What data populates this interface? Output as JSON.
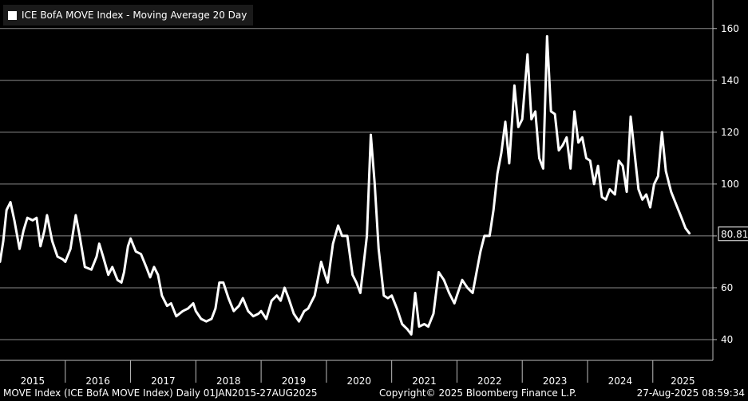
{
  "chart_data": {
    "type": "line",
    "title": "ICE BofA MOVE Index - Moving Average 20 Day",
    "series": [
      {
        "name": "ICE BofA MOVE Index - Moving Average 20 Day",
        "color": "#ffffff",
        "points": [
          [
            2015.0,
            70
          ],
          [
            2015.05,
            78
          ],
          [
            2015.1,
            90
          ],
          [
            2015.16,
            93
          ],
          [
            2015.22,
            86
          ],
          [
            2015.3,
            75
          ],
          [
            2015.36,
            82
          ],
          [
            2015.42,
            87
          ],
          [
            2015.5,
            86
          ],
          [
            2015.56,
            87
          ],
          [
            2015.62,
            76
          ],
          [
            2015.68,
            82
          ],
          [
            2015.72,
            88
          ],
          [
            2015.8,
            78
          ],
          [
            2015.88,
            72
          ],
          [
            2015.96,
            71
          ],
          [
            2016.0,
            70
          ],
          [
            2016.08,
            75
          ],
          [
            2016.16,
            88
          ],
          [
            2016.22,
            80
          ],
          [
            2016.3,
            68
          ],
          [
            2016.4,
            67
          ],
          [
            2016.48,
            72
          ],
          [
            2016.52,
            77
          ],
          [
            2016.58,
            72
          ],
          [
            2016.66,
            65
          ],
          [
            2016.72,
            68
          ],
          [
            2016.8,
            63
          ],
          [
            2016.86,
            62
          ],
          [
            2016.9,
            66
          ],
          [
            2016.96,
            76
          ],
          [
            2017.0,
            79
          ],
          [
            2017.08,
            74
          ],
          [
            2017.16,
            73
          ],
          [
            2017.24,
            68
          ],
          [
            2017.3,
            64
          ],
          [
            2017.36,
            68
          ],
          [
            2017.42,
            65
          ],
          [
            2017.48,
            57
          ],
          [
            2017.56,
            53
          ],
          [
            2017.62,
            54
          ],
          [
            2017.7,
            49
          ],
          [
            2017.8,
            51
          ],
          [
            2017.88,
            52
          ],
          [
            2017.96,
            54
          ],
          [
            2018.0,
            51
          ],
          [
            2018.08,
            48
          ],
          [
            2018.16,
            47
          ],
          [
            2018.24,
            48
          ],
          [
            2018.3,
            52
          ],
          [
            2018.36,
            62
          ],
          [
            2018.42,
            62
          ],
          [
            2018.5,
            56
          ],
          [
            2018.58,
            51
          ],
          [
            2018.66,
            53
          ],
          [
            2018.72,
            56
          ],
          [
            2018.8,
            51
          ],
          [
            2018.88,
            49
          ],
          [
            2018.96,
            50
          ],
          [
            2019.0,
            51
          ],
          [
            2019.08,
            48
          ],
          [
            2019.16,
            55
          ],
          [
            2019.24,
            57
          ],
          [
            2019.3,
            55
          ],
          [
            2019.36,
            60
          ],
          [
            2019.42,
            56
          ],
          [
            2019.5,
            50
          ],
          [
            2019.58,
            47
          ],
          [
            2019.66,
            51
          ],
          [
            2019.72,
            52
          ],
          [
            2019.82,
            57
          ],
          [
            2019.92,
            70
          ],
          [
            2019.98,
            65
          ],
          [
            2020.02,
            62
          ],
          [
            2020.1,
            77
          ],
          [
            2020.18,
            84
          ],
          [
            2020.24,
            80
          ],
          [
            2020.32,
            80
          ],
          [
            2020.4,
            65
          ],
          [
            2020.46,
            62
          ],
          [
            2020.52,
            58
          ],
          [
            2020.62,
            80
          ],
          [
            2020.68,
            119
          ],
          [
            2020.74,
            100
          ],
          [
            2020.8,
            75
          ],
          [
            2020.88,
            57
          ],
          [
            2020.94,
            56
          ],
          [
            2021.0,
            57
          ],
          [
            2021.08,
            52
          ],
          [
            2021.16,
            46
          ],
          [
            2021.24,
            44
          ],
          [
            2021.3,
            42
          ],
          [
            2021.36,
            58
          ],
          [
            2021.42,
            45
          ],
          [
            2021.5,
            46
          ],
          [
            2021.56,
            45
          ],
          [
            2021.64,
            50
          ],
          [
            2021.72,
            66
          ],
          [
            2021.8,
            63
          ],
          [
            2021.88,
            58
          ],
          [
            2021.96,
            54
          ],
          [
            2022.0,
            57
          ],
          [
            2022.08,
            63
          ],
          [
            2022.16,
            60
          ],
          [
            2022.24,
            58
          ],
          [
            2022.3,
            66
          ],
          [
            2022.36,
            74
          ],
          [
            2022.42,
            80
          ],
          [
            2022.5,
            80
          ],
          [
            2022.56,
            90
          ],
          [
            2022.62,
            104
          ],
          [
            2022.68,
            112
          ],
          [
            2022.74,
            124
          ],
          [
            2022.8,
            108
          ],
          [
            2022.88,
            138
          ],
          [
            2022.94,
            122
          ],
          [
            2023.0,
            125
          ],
          [
            2023.08,
            150
          ],
          [
            2023.14,
            125
          ],
          [
            2023.2,
            128
          ],
          [
            2023.26,
            110
          ],
          [
            2023.32,
            106
          ],
          [
            2023.38,
            157
          ],
          [
            2023.44,
            128
          ],
          [
            2023.5,
            127
          ],
          [
            2023.56,
            113
          ],
          [
            2023.62,
            115
          ],
          [
            2023.68,
            118
          ],
          [
            2023.74,
            106
          ],
          [
            2023.8,
            128
          ],
          [
            2023.86,
            116
          ],
          [
            2023.92,
            118
          ],
          [
            2023.98,
            110
          ],
          [
            2024.04,
            109
          ],
          [
            2024.1,
            100
          ],
          [
            2024.16,
            107
          ],
          [
            2024.22,
            95
          ],
          [
            2024.28,
            94
          ],
          [
            2024.34,
            98
          ],
          [
            2024.42,
            96
          ],
          [
            2024.48,
            109
          ],
          [
            2024.54,
            107
          ],
          [
            2024.6,
            97
          ],
          [
            2024.66,
            126
          ],
          [
            2024.72,
            112
          ],
          [
            2024.78,
            98
          ],
          [
            2024.84,
            94
          ],
          [
            2024.9,
            96
          ],
          [
            2024.96,
            91
          ],
          [
            2025.02,
            100
          ],
          [
            2025.08,
            103
          ],
          [
            2025.14,
            120
          ],
          [
            2025.2,
            105
          ],
          [
            2025.28,
            97
          ],
          [
            2025.36,
            92
          ],
          [
            2025.44,
            87
          ],
          [
            2025.5,
            83
          ],
          [
            2025.56,
            81
          ]
        ]
      }
    ],
    "xlim": [
      2015.0,
      2025.92
    ],
    "ylim": [
      32,
      171
    ],
    "yticks": [
      40,
      60,
      80,
      100,
      120,
      140,
      160
    ],
    "xtick_labels": [
      "2015",
      "2016",
      "2017",
      "2018",
      "2019",
      "2020",
      "2021",
      "2022",
      "2023",
      "2024",
      "2025"
    ],
    "last_value_label": "80.81",
    "y_axis_position": "right",
    "grid": true,
    "legend_position": "top-left"
  },
  "footer": {
    "left": "MOVE Index (ICE BofA MOVE Index)  Daily 01JAN2015-27AUG2025",
    "center": "Copyright© 2025 Bloomberg Finance L.P.",
    "right": "27-Aug-2025 08:59:34"
  }
}
